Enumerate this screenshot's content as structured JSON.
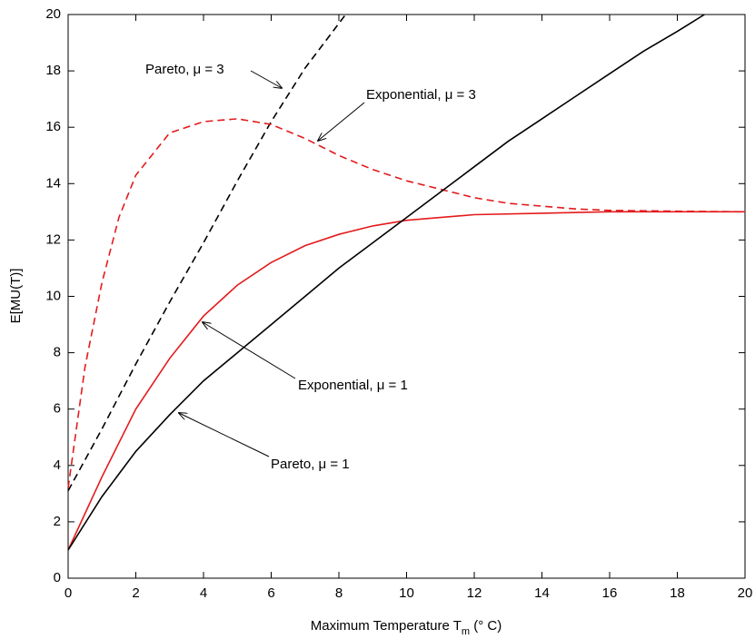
{
  "chart_data": {
    "type": "line",
    "x_label": [
      "Maximum Temperature T",
      "m",
      " (° C)"
    ],
    "y_label": "E[MU(T)]",
    "xlim": [
      0,
      20
    ],
    "xticks": [
      0,
      2,
      4,
      6,
      8,
      10,
      12,
      14,
      16,
      18,
      20
    ],
    "ylim": [
      0,
      20
    ],
    "yticks": [
      0,
      2,
      4,
      6,
      8,
      10,
      12,
      14,
      16,
      18,
      20
    ],
    "series": [
      {
        "name": "Pareto, μ = 3",
        "color": "#000000",
        "dashed": true,
        "x": [
          0,
          1,
          2,
          3,
          4,
          5,
          6,
          7,
          8.2
        ],
        "values": [
          3.1,
          5.3,
          7.6,
          9.8,
          11.9,
          14.1,
          16.2,
          18.1,
          20
        ]
      },
      {
        "name": "Exponential, μ = 3",
        "color": "#e41a1c",
        "dashed": true,
        "x": [
          0,
          0.5,
          1,
          1.5,
          2,
          3,
          4,
          5,
          6,
          7,
          8,
          9,
          10,
          11,
          12,
          13,
          14,
          15,
          16,
          18,
          20
        ],
        "values": [
          3.2,
          7.5,
          10.5,
          12.8,
          14.3,
          15.8,
          16.2,
          16.3,
          16.1,
          15.6,
          15.0,
          14.5,
          14.1,
          13.8,
          13.5,
          13.3,
          13.2,
          13.1,
          13.05,
          13.02,
          13.0
        ]
      },
      {
        "name": "Exponential, μ = 1",
        "color": "#e41a1c",
        "dashed": false,
        "x": [
          0,
          1,
          2,
          3,
          4,
          5,
          6,
          7,
          8,
          9,
          10,
          11,
          12,
          14,
          16,
          18,
          20
        ],
        "values": [
          1.0,
          3.6,
          6.0,
          7.8,
          9.3,
          10.4,
          11.2,
          11.8,
          12.2,
          12.5,
          12.7,
          12.8,
          12.9,
          12.95,
          13.0,
          13.0,
          13.0
        ]
      },
      {
        "name": "Pareto, μ = 1",
        "color": "#000000",
        "dashed": false,
        "x": [
          0,
          1,
          2,
          3,
          4,
          5,
          6,
          7,
          8,
          9,
          10,
          11,
          12,
          13,
          14,
          15,
          16,
          17,
          18,
          18.8
        ],
        "values": [
          1.0,
          2.9,
          4.5,
          5.8,
          7.0,
          8.0,
          9.0,
          10.0,
          11.0,
          11.9,
          12.8,
          13.7,
          14.6,
          15.5,
          16.3,
          17.1,
          17.9,
          18.7,
          19.4,
          20
        ]
      }
    ]
  }
}
